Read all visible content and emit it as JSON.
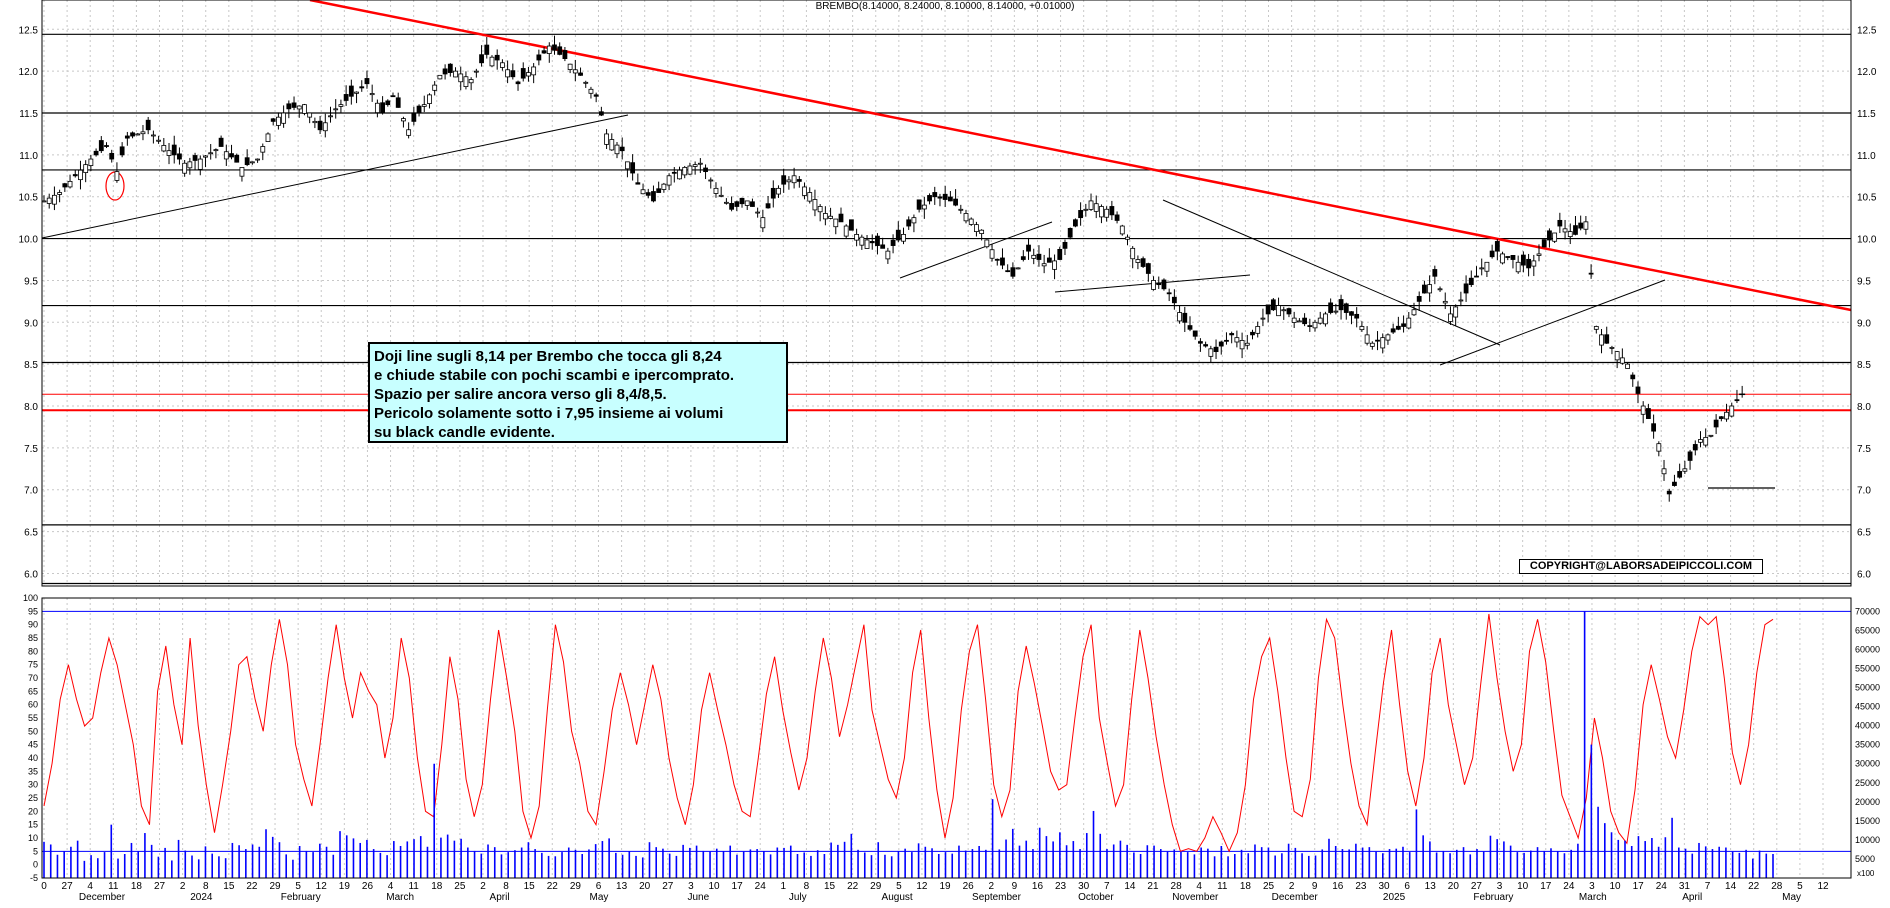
{
  "header": {
    "title": "BREMBO(8.14000, 8.24000, 8.10000, 8.14000, +0.01000)"
  },
  "annotation": {
    "lines": [
      "Doji line sugli 8,14 per Brembo che tocca gli 8,24",
      "e chiude stabile con pochi scambi e ipercomprato.",
      "Spazio per salire ancora verso gli 8,4/8,5.",
      "Pericolo solamente sotto i 7,95 insieme ai volumi",
      "su black candle evidente."
    ]
  },
  "copyright": "COPYRIGHT@LABORSADEIPICCOLI.COM",
  "colors": {
    "trendline": "#ff0000",
    "support_lines": "#000000",
    "oscillator": "#ff0000",
    "volume": "#0000ff",
    "note_background": "#c8ffff"
  },
  "chart_data": [
    {
      "type": "candlestick",
      "title": "BREMBO(8.14000, 8.24000, 8.10000, 8.14000, +0.01000)",
      "ylim": [
        5.85,
        12.85
      ],
      "yticks": [
        "12.5",
        "12.0",
        "11.5",
        "11.0",
        "10.5",
        "10.0",
        "9.5",
        "9.0",
        "8.5",
        "8.0",
        "7.5",
        "7.0",
        "6.5",
        "6.0"
      ],
      "yticks_right": [
        "12.5",
        "12.0",
        "11.5",
        "11.0",
        "10.5",
        "10.0",
        "9.5",
        "9.0",
        "8.5",
        "8.0",
        "7.5",
        "7.0",
        "6.5",
        "6.0"
      ],
      "last_bar": {
        "open": 8.14,
        "high": 8.24,
        "low": 8.1,
        "close": 8.14,
        "change": 0.01
      },
      "horizontal_levels": [
        12.44,
        11.5,
        10.82,
        10.0,
        9.2,
        8.52,
        7.95,
        6.58,
        5.88
      ],
      "red_levels": [
        8.14
      ],
      "price_path": [
        [
          0,
          10.45
        ],
        [
          3,
          10.55
        ],
        [
          6,
          10.75
        ],
        [
          9,
          10.95
        ],
        [
          12,
          11.1
        ],
        [
          14,
          10.8
        ],
        [
          16,
          11.2
        ],
        [
          20,
          11.3
        ],
        [
          24,
          11.05
        ],
        [
          27,
          10.9
        ],
        [
          30,
          10.95
        ],
        [
          34,
          11.1
        ],
        [
          38,
          10.85
        ],
        [
          41,
          10.95
        ],
        [
          44,
          11.4
        ],
        [
          47,
          11.55
        ],
        [
          50,
          11.6
        ],
        [
          53,
          11.3
        ],
        [
          56,
          11.55
        ],
        [
          59,
          11.7
        ],
        [
          62,
          11.85
        ],
        [
          65,
          11.5
        ],
        [
          67,
          11.7
        ],
        [
          70,
          11.3
        ],
        [
          73,
          11.6
        ],
        [
          76,
          11.95
        ],
        [
          79,
          12.0
        ],
        [
          82,
          11.9
        ],
        [
          85,
          12.2
        ],
        [
          88,
          12.1
        ],
        [
          91,
          11.85
        ],
        [
          94,
          12.05
        ],
        [
          97,
          12.3
        ],
        [
          100,
          12.15
        ],
        [
          103,
          11.95
        ],
        [
          106,
          11.7
        ],
        [
          108,
          11.25
        ],
        [
          111,
          11.05
        ],
        [
          114,
          10.65
        ],
        [
          117,
          10.45
        ],
        [
          120,
          10.75
        ],
        [
          123,
          10.85
        ],
        [
          126,
          10.9
        ],
        [
          129,
          10.6
        ],
        [
          132,
          10.35
        ],
        [
          135,
          10.45
        ],
        [
          138,
          10.25
        ],
        [
          141,
          10.6
        ],
        [
          144,
          10.75
        ],
        [
          147,
          10.55
        ],
        [
          150,
          10.3
        ],
        [
          153,
          10.2
        ],
        [
          156,
          10.05
        ],
        [
          159,
          9.95
        ],
        [
          162,
          9.85
        ],
        [
          165,
          10.05
        ],
        [
          168,
          10.35
        ],
        [
          171,
          10.5
        ],
        [
          174,
          10.45
        ],
        [
          177,
          10.3
        ],
        [
          180,
          10.1
        ],
        [
          183,
          9.75
        ],
        [
          186,
          9.55
        ],
        [
          189,
          9.85
        ],
        [
          192,
          9.7
        ],
        [
          195,
          9.75
        ],
        [
          198,
          10.15
        ],
        [
          201,
          10.45
        ],
        [
          204,
          10.35
        ],
        [
          207,
          10.15
        ],
        [
          210,
          9.75
        ],
        [
          213,
          9.5
        ],
        [
          216,
          9.35
        ],
        [
          219,
          9.0
        ],
        [
          222,
          8.75
        ],
        [
          225,
          8.65
        ],
        [
          228,
          8.85
        ],
        [
          231,
          8.75
        ],
        [
          234,
          9.05
        ],
        [
          237,
          9.2
        ],
        [
          240,
          9.05
        ],
        [
          243,
          8.95
        ],
        [
          246,
          9.1
        ],
        [
          249,
          9.15
        ],
        [
          252,
          9.05
        ],
        [
          255,
          8.75
        ],
        [
          258,
          8.85
        ],
        [
          261,
          8.95
        ],
        [
          264,
          9.25
        ],
        [
          267,
          9.55
        ],
        [
          270,
          9.1
        ],
        [
          273,
          9.35
        ],
        [
          276,
          9.65
        ],
        [
          279,
          9.85
        ],
        [
          282,
          9.75
        ],
        [
          285,
          9.65
        ],
        [
          288,
          9.9
        ],
        [
          291,
          10.15
        ],
        [
          294,
          10.05
        ],
        [
          296,
          10.2
        ],
        [
          298,
          8.95
        ],
        [
          300,
          8.75
        ],
        [
          302,
          8.65
        ],
        [
          304,
          8.5
        ],
        [
          306,
          8.15
        ],
        [
          308,
          7.85
        ],
        [
          310,
          7.55
        ],
        [
          312,
          6.95
        ],
        [
          314,
          7.15
        ],
        [
          316,
          7.35
        ],
        [
          318,
          7.6
        ],
        [
          320,
          7.65
        ],
        [
          322,
          7.85
        ],
        [
          324,
          8.0
        ],
        [
          326,
          8.14
        ]
      ],
      "price_index_range": [
        0,
        330
      ]
    },
    {
      "type": "line",
      "series": [
        {
          "values": [
            22,
            38,
            62,
            75,
            62,
            52,
            55,
            72,
            85,
            75,
            60,
            45,
            22,
            15,
            65,
            82,
            60,
            45,
            85,
            52,
            30,
            12,
            30,
            50,
            75,
            78,
            62,
            50,
            75,
            92,
            75,
            45,
            32,
            22,
            45,
            70,
            90,
            70,
            55,
            72,
            65,
            60,
            40,
            55,
            85,
            70,
            40,
            20,
            18,
            45,
            78,
            62,
            32,
            18,
            30,
            62,
            88,
            70,
            50,
            20,
            10,
            22,
            58,
            90,
            76,
            50,
            38,
            20,
            15,
            35,
            58,
            72,
            60,
            45,
            60,
            75,
            62,
            40,
            25,
            15,
            30,
            58,
            72,
            58,
            45,
            30,
            20,
            18,
            40,
            64,
            78,
            58,
            42,
            28,
            40,
            65,
            85,
            70,
            48,
            60,
            75,
            90,
            58,
            45,
            32,
            25,
            40,
            72,
            88,
            55,
            28,
            10,
            25,
            58,
            80,
            90,
            62,
            30,
            18,
            28,
            65,
            82,
            68,
            52,
            35,
            28,
            30,
            55,
            78,
            90,
            55,
            38,
            22,
            30,
            62,
            88,
            70,
            48,
            30,
            15,
            5,
            6,
            5,
            10,
            18,
            12,
            5,
            12,
            30,
            62,
            78,
            85,
            65,
            40,
            20,
            18,
            32,
            70,
            92,
            85,
            60,
            38,
            22,
            15,
            42,
            68,
            88,
            60,
            35,
            22,
            40,
            72,
            85,
            60,
            45,
            30,
            40,
            68,
            94,
            70,
            50,
            35,
            45,
            80,
            92,
            76,
            50,
            26,
            18,
            10,
            25,
            55,
            40,
            20,
            12,
            8,
            28,
            60,
            75,
            62,
            48,
            40,
            58,
            80,
            93,
            90,
            93,
            70,
            42,
            30,
            45,
            72,
            90,
            92
          ]
        }
      ],
      "ylim": [
        -5,
        100
      ],
      "yticks": [
        "100",
        "95",
        "90",
        "85",
        "80",
        "75",
        "70",
        "65",
        "60",
        "55",
        "50",
        "45",
        "40",
        "35",
        "30",
        "25",
        "20",
        "15",
        "10",
        "5",
        "0",
        "-5"
      ],
      "levels": [
        95,
        5
      ]
    },
    {
      "type": "bar",
      "series": [
        {
          "values": [
            9500,
            8800,
            6100,
            7000,
            8200,
            9800,
            4500,
            6000,
            5200,
            6800,
            14000,
            5100,
            6300,
            9200,
            7000,
            11800,
            8700,
            5600,
            7900,
            4600,
            10000,
            7200,
            5900,
            4900,
            8300,
            6400,
            5700,
            5200,
            9200,
            8600,
            7600,
            8800,
            8200,
            12800,
            10800,
            9400,
            6200,
            4800,
            8400,
            7100,
            6800,
            9000,
            8200,
            6100,
            12300,
            11200,
            10400,
            9200,
            10000,
            7600,
            6600,
            6000,
            9700,
            8400,
            9600,
            10200,
            11000,
            8200,
            30000,
            10600,
            11400,
            9800,
            10300,
            8000,
            7100,
            6400,
            8800,
            8100,
            6200,
            6800,
            7300,
            8000,
            9400,
            7600,
            6600,
            5800,
            5700,
            6800,
            8000,
            7400,
            6300,
            7500,
            8900,
            9700,
            10400,
            6600,
            6100,
            7000,
            5800,
            5400,
            9400,
            8100,
            7700,
            6400,
            5800,
            8700,
            7900,
            8500,
            7100,
            6900,
            7700,
            7000,
            8500,
            6100,
            6900,
            7500,
            7600,
            7000,
            6200,
            8000,
            7900,
            8500,
            6300,
            6700,
            5800,
            7300,
            6300,
            9300,
            8700,
            9500,
            11600,
            7400,
            6700,
            6000,
            9400,
            6100,
            5700,
            7100,
            7700,
            6800,
            9100,
            8200,
            7800,
            6300,
            6800,
            6400,
            8500,
            7200,
            7600,
            8400,
            7400,
            20700,
            7500,
            10100,
            12900,
            8500,
            9800,
            7600,
            13200,
            11000,
            9600,
            12000,
            8600,
            9700,
            7600,
            11800,
            17600,
            11600,
            7600,
            8800,
            9800,
            8700,
            6700,
            6300,
            8600,
            8500,
            7600,
            6900,
            7500,
            6900,
            6800,
            6200,
            8000,
            7700,
            5700,
            8400,
            5700,
            6300,
            7400,
            6500,
            8800,
            8100,
            8000,
            5900,
            6500,
            9000,
            7900,
            6500,
            5800,
            5900,
            7500,
            10300,
            8400,
            7600,
            7500,
            9000,
            8000,
            8100,
            6900,
            6500,
            7600,
            7700,
            8200,
            6800,
            18000,
            11200,
            9600,
            6700,
            7100,
            6500,
            7400,
            8100,
            6200,
            7600,
            6900,
            11100,
            10200,
            9600,
            8500,
            6800,
            6600,
            7200,
            8100,
            7100,
            7800,
            7000,
            6500,
            7400,
            9000,
            70000,
            35000,
            18700,
            14400,
            12000,
            10000,
            9800,
            8400,
            11000,
            9700,
            10500,
            8200,
            10700,
            15800,
            8000,
            7700,
            6400,
            9200,
            8300,
            7600,
            8200,
            8000,
            6900,
            6600,
            7400,
            5100,
            7200,
            6400,
            6300
          ]
        }
      ],
      "ylim": [
        0,
        70000
      ],
      "yticks": [
        "70000",
        "65000",
        "60000",
        "55000",
        "50000",
        "45000",
        "40000",
        "35000",
        "30000",
        "25000",
        "20000",
        "15000",
        "10000",
        "5000"
      ],
      "unit_label": "x100"
    }
  ],
  "x_axis": {
    "day_ticks": [
      "0",
      "27",
      "4",
      "11",
      "18",
      "27",
      "2",
      "8",
      "15",
      "22",
      "29",
      "5",
      "12",
      "19",
      "26",
      "4",
      "11",
      "18",
      "25",
      "2",
      "8",
      "15",
      "22",
      "29",
      "6",
      "13",
      "20",
      "27",
      "3",
      "10",
      "17",
      "24",
      "1",
      "8",
      "15",
      "22",
      "29",
      "5",
      "12",
      "19",
      "26",
      "2",
      "9",
      "16",
      "23",
      "30",
      "7",
      "14",
      "21",
      "28",
      "4",
      "11",
      "18",
      "25",
      "2",
      "9",
      "16",
      "23",
      "30",
      "6",
      "13",
      "20",
      "27",
      "3",
      "10",
      "17",
      "24",
      "3",
      "10",
      "17",
      "24",
      "31",
      "7",
      "14",
      "22",
      "28",
      "5",
      "12"
    ],
    "month_ticks": [
      "December",
      "2024",
      "February",
      "March",
      "April",
      "May",
      "June",
      "July",
      "August",
      "September",
      "October",
      "November",
      "December",
      "2025",
      "February",
      "March",
      "April",
      "May"
    ]
  }
}
